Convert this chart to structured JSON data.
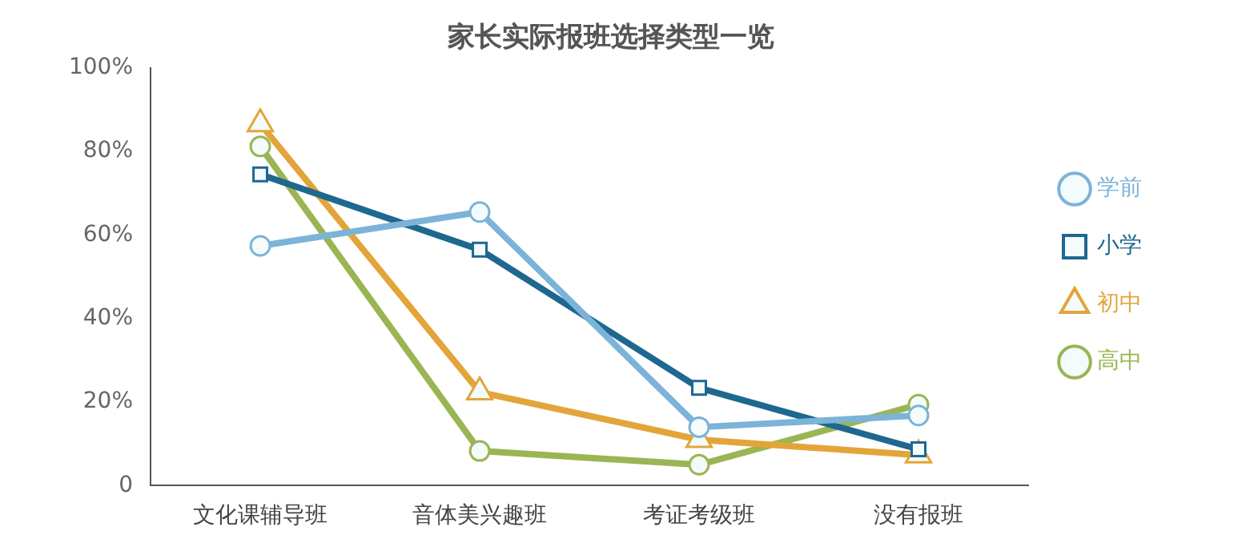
{
  "chart_data": {
    "type": "line",
    "title": "家长实际报班选择类型一览",
    "categories": [
      "文化课辅导班",
      "音体美兴趣班",
      "考证考级班",
      "没有报班"
    ],
    "series": [
      {
        "name": "学前",
        "color": "#7cb3d8",
        "marker": "circle",
        "values": [
          57.4,
          65.5,
          14,
          16.8
        ]
      },
      {
        "name": "小学",
        "color": "#1e6890",
        "marker": "square",
        "values": [
          74.5,
          56.5,
          23.4,
          8.7
        ]
      },
      {
        "name": "初中",
        "color": "#e3a53a",
        "marker": "triangle",
        "values": [
          86.6,
          22.4,
          11,
          7.3
        ]
      },
      {
        "name": "高中",
        "color": "#9ab553",
        "marker": "circle",
        "values": [
          81.2,
          8.3,
          5,
          19.4
        ]
      }
    ],
    "ylim": [
      0,
      100
    ],
    "yticks": [
      {
        "value": 0,
        "label": "0"
      },
      {
        "value": 20,
        "label": "20%"
      },
      {
        "value": 40,
        "label": "40%"
      },
      {
        "value": 60,
        "label": "60%"
      },
      {
        "value": 80,
        "label": "80%"
      },
      {
        "value": 100,
        "label": "100%"
      }
    ],
    "grid": false,
    "legend": "right",
    "line_style": "solid"
  }
}
